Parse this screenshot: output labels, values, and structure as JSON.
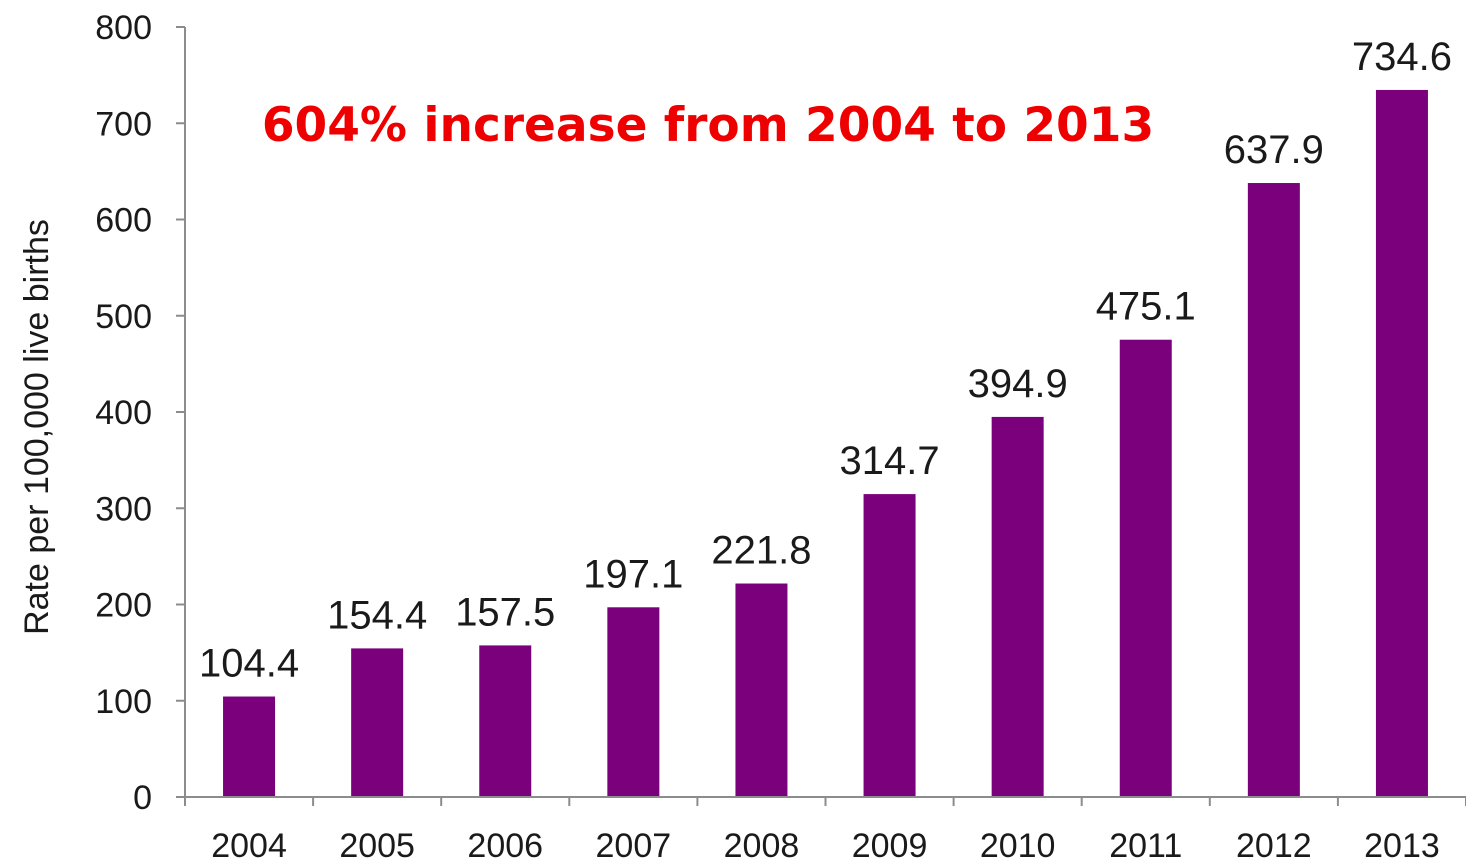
{
  "chart_data": {
    "type": "bar",
    "categories": [
      "2004",
      "2005",
      "2006",
      "2007",
      "2008",
      "2009",
      "2010",
      "2011",
      "2012",
      "2013"
    ],
    "values": [
      104.4,
      154.4,
      157.5,
      197.1,
      221.8,
      314.7,
      394.9,
      475.1,
      637.9,
      734.6
    ],
    "data_labels": [
      "104.4",
      "154.4",
      "157.5",
      "197.1",
      "221.8",
      "314.7",
      "394.9",
      "475.1",
      "637.9",
      "734.6"
    ],
    "title": "",
    "xlabel": "",
    "ylabel": "Rate per 100,000 live births",
    "ylim": [
      0,
      800
    ],
    "yticks": [
      "0",
      "100",
      "200",
      "300",
      "400",
      "500",
      "600",
      "700",
      "800"
    ],
    "annotation": "604% increase from 2004 to 2013",
    "grid": false,
    "legend": "none",
    "colors": {
      "bar": "#7b007b",
      "annotation": "#ee0000",
      "axis": "#8c8c8c",
      "text": "#1a1a1a"
    }
  }
}
